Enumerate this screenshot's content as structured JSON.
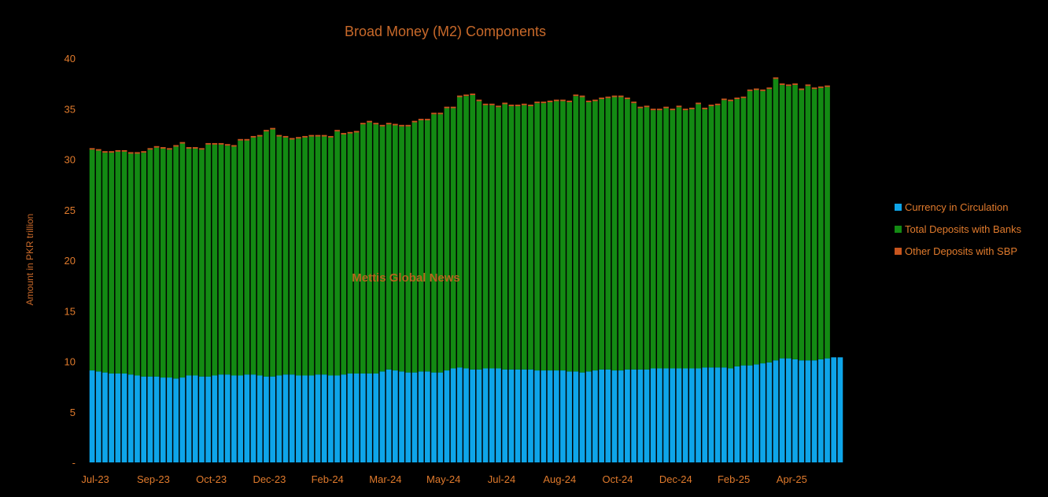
{
  "chart_data": {
    "type": "bar",
    "stacked": true,
    "title": "Broad Money (M2) Components",
    "xlabel": "",
    "ylabel": "Amount in PKR trillion",
    "ylim": [
      0,
      40
    ],
    "yticks": [
      0,
      5,
      10,
      15,
      20,
      25,
      30,
      35,
      40
    ],
    "ytick_labels": [
      "-",
      "5",
      "10",
      "15",
      "20",
      "25",
      "30",
      "35",
      "40"
    ],
    "x_tick_labels": [
      {
        "label": "Jul-23",
        "index": 0
      },
      {
        "label": "Sep-23",
        "index": 9
      },
      {
        "label": "Oct-23",
        "index": 18
      },
      {
        "label": "Dec-23",
        "index": 27
      },
      {
        "label": "Feb-24",
        "index": 36
      },
      {
        "label": "Mar-24",
        "index": 45
      },
      {
        "label": "May-24",
        "index": 54
      },
      {
        "label": "Jul-24",
        "index": 63
      },
      {
        "label": "Aug-24",
        "index": 72
      },
      {
        "label": "Oct-24",
        "index": 81
      },
      {
        "label": "Dec-24",
        "index": 90
      },
      {
        "label": "Feb-25",
        "index": 99
      },
      {
        "label": "Apr-25",
        "index": 108
      }
    ],
    "grid": false,
    "legend_position": "right",
    "watermark": "Mettis Global News",
    "series": [
      {
        "name": "Currency in Circulation",
        "color": "#0ea5e9",
        "values": [
          9.1,
          9.0,
          8.9,
          8.8,
          8.8,
          8.8,
          8.7,
          8.6,
          8.5,
          8.5,
          8.5,
          8.4,
          8.4,
          8.3,
          8.4,
          8.6,
          8.6,
          8.5,
          8.5,
          8.6,
          8.7,
          8.7,
          8.6,
          8.6,
          8.7,
          8.7,
          8.6,
          8.5,
          8.5,
          8.6,
          8.7,
          8.7,
          8.6,
          8.6,
          8.6,
          8.7,
          8.7,
          8.6,
          8.6,
          8.7,
          8.8,
          8.8,
          8.8,
          8.8,
          8.8,
          9.0,
          9.2,
          9.1,
          9.0,
          8.9,
          8.9,
          9.0,
          9.0,
          8.9,
          8.9,
          9.1,
          9.3,
          9.4,
          9.3,
          9.2,
          9.2,
          9.3,
          9.3,
          9.3,
          9.2,
          9.2,
          9.2,
          9.2,
          9.2,
          9.1,
          9.1,
          9.1,
          9.1,
          9.1,
          9.0,
          9.0,
          8.9,
          9.0,
          9.1,
          9.2,
          9.2,
          9.1,
          9.1,
          9.2,
          9.2,
          9.2,
          9.2,
          9.3,
          9.3,
          9.3,
          9.3,
          9.3,
          9.3,
          9.3,
          9.3,
          9.4,
          9.4,
          9.4,
          9.4,
          9.3,
          9.5,
          9.6,
          9.6,
          9.7,
          9.8,
          9.9,
          10.1,
          10.3,
          10.3,
          10.2,
          10.1,
          10.1,
          10.1,
          10.2,
          10.3,
          10.4,
          10.4
        ],
        "values_note": ""
      },
      {
        "name": "Total Deposits with Banks",
        "color": "#138a13",
        "values": [
          21.85,
          21.85,
          21.75,
          21.85,
          21.95,
          21.95,
          21.85,
          21.95,
          22.15,
          22.45,
          22.65,
          22.65,
          22.55,
          22.95,
          23.15,
          22.45,
          22.45,
          22.45,
          22.95,
          22.85,
          22.75,
          22.65,
          22.65,
          23.25,
          23.15,
          23.45,
          23.65,
          24.25,
          24.45,
          23.65,
          23.45,
          23.25,
          23.45,
          23.55,
          23.65,
          23.55,
          23.55,
          23.55,
          24.15,
          23.75,
          23.75,
          23.85,
          24.65,
          24.85,
          24.65,
          24.25,
          24.25,
          24.25,
          24.25,
          24.35,
          24.75,
          24.85,
          24.85,
          25.55,
          25.55,
          25.95,
          25.75,
          26.75,
          26.95,
          27.15,
          26.55,
          26.05,
          26.05,
          25.85,
          26.25,
          26.05,
          26.05,
          26.15,
          26.05,
          26.45,
          26.45,
          26.55,
          26.65,
          26.65,
          26.65,
          27.25,
          27.25,
          26.65,
          26.65,
          26.75,
          26.85,
          27.05,
          27.05,
          26.75,
          26.35,
          25.85,
          25.95,
          25.55,
          25.55,
          25.75,
          25.55,
          25.85,
          25.55,
          25.65,
          26.15,
          25.55,
          25.85,
          25.95,
          26.45,
          26.45,
          26.45,
          26.45,
          27.15,
          27.15,
          26.95,
          27.05,
          27.85,
          27.05,
          26.95,
          27.15,
          26.75,
          27.15,
          26.85,
          26.85,
          26.85
        ],
        "values_note": ""
      },
      {
        "name": "Other Deposits with SBP",
        "color": "#c8551e",
        "values": [
          0.15,
          0.15,
          0.15,
          0.15,
          0.15,
          0.15,
          0.15,
          0.15,
          0.15,
          0.15,
          0.15,
          0.15,
          0.15,
          0.15,
          0.15,
          0.15,
          0.15,
          0.15,
          0.15,
          0.15,
          0.15,
          0.15,
          0.15,
          0.15,
          0.15,
          0.15,
          0.15,
          0.15,
          0.15,
          0.15,
          0.15,
          0.15,
          0.15,
          0.15,
          0.15,
          0.15,
          0.15,
          0.15,
          0.15,
          0.15,
          0.15,
          0.15,
          0.15,
          0.15,
          0.15,
          0.15,
          0.15,
          0.15,
          0.15,
          0.15,
          0.15,
          0.15,
          0.15,
          0.15,
          0.15,
          0.15,
          0.15,
          0.15,
          0.15,
          0.15,
          0.15,
          0.15,
          0.15,
          0.15,
          0.15,
          0.15,
          0.15,
          0.15,
          0.15,
          0.15,
          0.15,
          0.15,
          0.15,
          0.15,
          0.15,
          0.15,
          0.15,
          0.15,
          0.15,
          0.15,
          0.15,
          0.15,
          0.15,
          0.15,
          0.15,
          0.15,
          0.15,
          0.15,
          0.15,
          0.15,
          0.15,
          0.15,
          0.15,
          0.15,
          0.15,
          0.15,
          0.15,
          0.15,
          0.15,
          0.15,
          0.15,
          0.15,
          0.15,
          0.15,
          0.15,
          0.15,
          0.15,
          0.15,
          0.15,
          0.15,
          0.15,
          0.15,
          0.15,
          0.15,
          0.15
        ],
        "values_note": ""
      }
    ]
  }
}
